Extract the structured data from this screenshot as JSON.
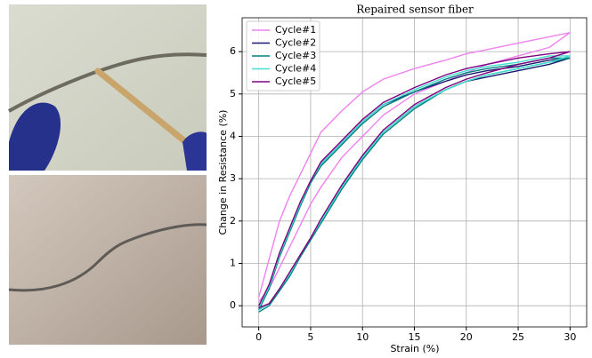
{
  "chart_data": {
    "type": "line",
    "title": "Repaired sensor fiber",
    "x_label": "Strain (%)",
    "y_label": "Change in Resistance (%)",
    "x": [
      0,
      1,
      2,
      3,
      4,
      5,
      6,
      8,
      10,
      12,
      15,
      18,
      20,
      22,
      25,
      28,
      30,
      28,
      25,
      22,
      20,
      18,
      15,
      12,
      10,
      8,
      6,
      5,
      4,
      3,
      2,
      1,
      0
    ],
    "series": [
      {
        "name": "Cycle#1",
        "color": "#ee82ee",
        "values": [
          0.1,
          0.4,
          0.9,
          1.4,
          1.9,
          2.4,
          2.8,
          3.5,
          4.0,
          4.5,
          5.0,
          5.3,
          5.5,
          5.7,
          5.9,
          6.1,
          6.45,
          6.35,
          6.2,
          6.05,
          5.95,
          5.8,
          5.6,
          5.35,
          5.05,
          4.6,
          4.1,
          3.6,
          3.1,
          2.6,
          2.0,
          1.1,
          0.2
        ]
      },
      {
        "name": "Cycle#2",
        "color": "#191970",
        "values": [
          -0.1,
          0.05,
          0.4,
          0.75,
          1.2,
          1.6,
          2.0,
          2.8,
          3.5,
          4.1,
          4.7,
          5.1,
          5.3,
          5.4,
          5.55,
          5.7,
          5.85,
          5.8,
          5.65,
          5.55,
          5.45,
          5.3,
          5.05,
          4.75,
          4.35,
          3.85,
          3.35,
          2.95,
          2.4,
          1.8,
          1.2,
          0.45,
          -0.05
        ]
      },
      {
        "name": "Cycle#3",
        "color": "#008080",
        "values": [
          -0.15,
          0.0,
          0.35,
          0.7,
          1.15,
          1.55,
          1.95,
          2.75,
          3.45,
          4.05,
          4.65,
          5.1,
          5.3,
          5.45,
          5.6,
          5.75,
          5.85,
          5.85,
          5.7,
          5.6,
          5.5,
          5.35,
          5.05,
          4.7,
          4.3,
          3.8,
          3.3,
          2.9,
          2.35,
          1.75,
          1.15,
          0.4,
          -0.1
        ]
      },
      {
        "name": "Cycle#4",
        "color": "#40e0d0",
        "values": [
          -0.1,
          0.05,
          0.4,
          0.75,
          1.2,
          1.6,
          2.0,
          2.8,
          3.5,
          4.1,
          4.7,
          5.1,
          5.3,
          5.45,
          5.6,
          5.75,
          5.9,
          5.9,
          5.75,
          5.65,
          5.55,
          5.4,
          5.1,
          4.75,
          4.35,
          3.85,
          3.35,
          2.95,
          2.4,
          1.8,
          1.2,
          0.45,
          -0.05
        ]
      },
      {
        "name": "Cycle#5",
        "color": "#800080",
        "values": [
          -0.05,
          0.05,
          0.4,
          0.8,
          1.2,
          1.6,
          2.05,
          2.85,
          3.55,
          4.15,
          4.75,
          5.15,
          5.35,
          5.5,
          5.7,
          5.85,
          6.0,
          5.95,
          5.85,
          5.7,
          5.6,
          5.45,
          5.15,
          4.8,
          4.4,
          3.9,
          3.4,
          2.95,
          2.45,
          1.85,
          1.25,
          0.5,
          0.0
        ]
      }
    ],
    "xlim": [
      -1.6,
      31.6
    ],
    "xticks": [
      0,
      5,
      10,
      15,
      20,
      25,
      30
    ],
    "ylim": [
      -0.5,
      6.8
    ],
    "yticks": [
      0,
      1,
      2,
      3,
      4,
      5,
      6
    ],
    "grid": true,
    "legend": "upper left"
  }
}
